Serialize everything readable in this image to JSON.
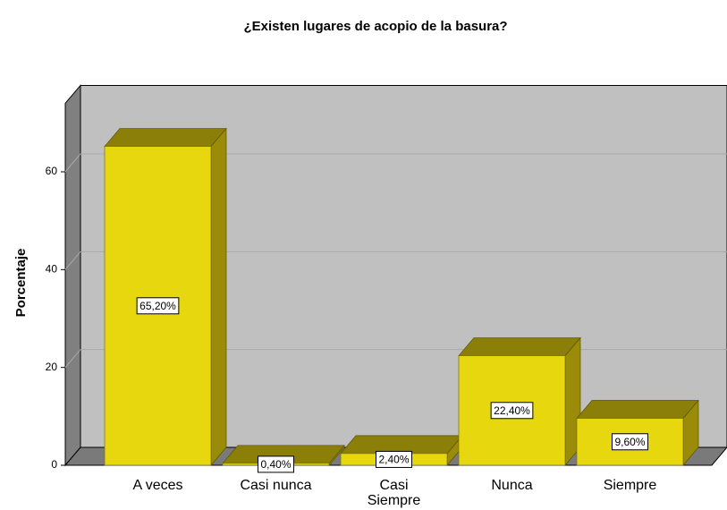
{
  "chart_data": {
    "type": "bar3d",
    "title": "¿Existen lugares de acopio de la basura?",
    "ylabel": "Porcentaje",
    "categories": [
      "A veces",
      "Casi nunca",
      "Casi Siempre",
      "Nunca",
      "Siempre"
    ],
    "values": [
      65.2,
      0.4,
      2.4,
      22.4,
      9.6
    ],
    "value_labels": [
      "65,20%",
      "0,40%",
      "2,40%",
      "22,40%",
      "9,60%"
    ],
    "color": "#e6d70f",
    "ylim": [
      0,
      74
    ],
    "yticks": [
      0,
      20,
      40,
      60
    ],
    "grid": true
  }
}
